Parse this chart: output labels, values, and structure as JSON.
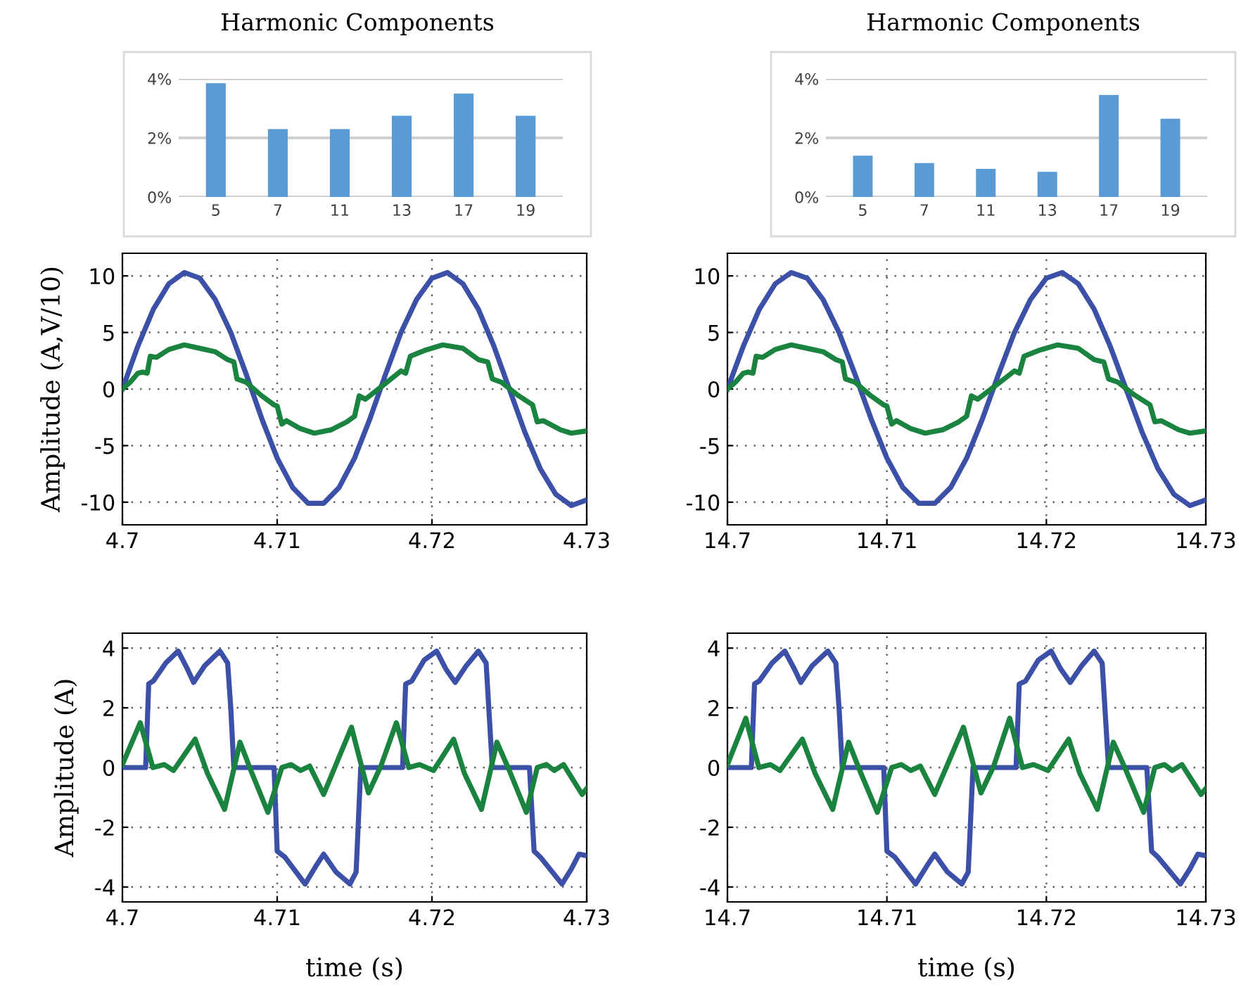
{
  "chart_data": [
    {
      "type": "bar",
      "title": "Harmonic Components",
      "categories": [
        "5",
        "7",
        "11",
        "13",
        "17",
        "19"
      ],
      "values": [
        3.85,
        2.3,
        2.3,
        2.75,
        3.5,
        2.75
      ],
      "color": "#5b9bd5",
      "ylim": [
        0,
        4
      ],
      "yticks": [
        {
          "value": 0,
          "label": "0%"
        },
        {
          "value": 2,
          "label": "2%"
        },
        {
          "value": 4,
          "label": "4%"
        }
      ],
      "grid": "y"
    },
    {
      "type": "bar",
      "title": "Harmonic Components",
      "categories": [
        "5",
        "7",
        "11",
        "13",
        "17",
        "19"
      ],
      "values": [
        1.4,
        1.15,
        0.95,
        0.85,
        3.45,
        2.65
      ],
      "color": "#5b9bd5",
      "ylim": [
        0,
        4
      ],
      "yticks": [
        {
          "value": 0,
          "label": "0%"
        },
        {
          "value": 2,
          "label": "2%"
        },
        {
          "value": 4,
          "label": "4%"
        }
      ],
      "grid": "y"
    },
    {
      "type": "line",
      "ylabel": "Amplitude (A,V/10)",
      "xlim": [
        4.7,
        4.73
      ],
      "xticks": [
        4.7,
        4.71,
        4.72,
        4.73
      ],
      "ylim": [
        -12,
        12
      ],
      "yticks": [
        {
          "value": -10,
          "label": "-10"
        },
        {
          "value": -5,
          "label": "-5"
        },
        0,
        5,
        10
      ],
      "grid": true,
      "line_style": "solid",
      "series": [
        {
          "color": "#3b50a6",
          "x": [
            4.7,
            4.701,
            4.702,
            4.703,
            4.704,
            4.705,
            4.706,
            4.707,
            4.708,
            4.709,
            4.71,
            4.711,
            4.712,
            4.713,
            4.714,
            4.715,
            4.716,
            4.717,
            4.718,
            4.719,
            4.72,
            4.721,
            4.722,
            4.723,
            4.724,
            4.725,
            4.726,
            4.727,
            4.728,
            4.729,
            4.73
          ],
          "values": [
            0,
            3.8,
            7.05,
            9.3,
            10.3,
            9.8,
            7.9,
            5.0,
            1.3,
            -2.6,
            -6.1,
            -8.7,
            -10.1,
            -10.1,
            -8.7,
            -6.1,
            -2.6,
            1.3,
            5.0,
            7.9,
            9.8,
            10.3,
            9.3,
            7.05,
            3.8,
            0,
            -3.8,
            -7.05,
            -9.3,
            -10.3,
            -9.8
          ]
        },
        {
          "color": "#1b8340",
          "x": [
            4.7,
            4.7005,
            4.701,
            4.7013,
            4.7016,
            4.7018,
            4.7022,
            4.703,
            4.704,
            4.705,
            4.706,
            4.7068,
            4.7072,
            4.7074,
            4.708,
            4.709,
            4.7098,
            4.71,
            4.7103,
            4.7106,
            4.7115,
            4.7124,
            4.7135,
            4.7145,
            4.715,
            4.7153,
            4.7157,
            4.717,
            4.718,
            4.7183,
            4.7186,
            4.7195,
            4.7207,
            4.722,
            4.723,
            4.7236,
            4.7239,
            4.7245,
            4.7255,
            4.7265,
            4.7268,
            4.7272,
            4.7283,
            4.729,
            4.73
          ],
          "values": [
            0,
            0.6,
            1.4,
            1.5,
            1.4,
            2.9,
            2.8,
            3.5,
            3.9,
            3.6,
            3.3,
            2.6,
            2.4,
            0.9,
            0.6,
            -0.6,
            -1.4,
            -1.5,
            -3.1,
            -2.8,
            -3.5,
            -3.9,
            -3.6,
            -2.9,
            -2.4,
            -0.6,
            -0.9,
            0.5,
            1.6,
            1.4,
            2.9,
            3.4,
            3.9,
            3.6,
            2.6,
            2.4,
            0.9,
            0.6,
            -0.5,
            -1.4,
            -2.9,
            -2.8,
            -3.6,
            -3.9,
            -3.7
          ]
        }
      ]
    },
    {
      "type": "line",
      "xlim": [
        14.7,
        14.73
      ],
      "xticks": [
        14.7,
        14.71,
        14.72,
        14.73
      ],
      "ylim": [
        -12,
        12
      ],
      "yticks": [
        {
          "value": -10,
          "label": "-10"
        },
        {
          "value": -5,
          "label": "-5"
        },
        0,
        5,
        10
      ],
      "grid": true,
      "line_style": "solid",
      "series": [
        {
          "color": "#3b50a6",
          "x": [
            14.7,
            14.701,
            14.702,
            14.703,
            14.704,
            14.705,
            14.706,
            14.707,
            14.708,
            14.709,
            14.71,
            14.711,
            14.712,
            14.713,
            14.714,
            14.715,
            14.716,
            14.717,
            14.718,
            14.719,
            14.72,
            14.721,
            14.722,
            14.723,
            14.724,
            14.725,
            14.726,
            14.727,
            14.728,
            14.729,
            14.73
          ],
          "values": [
            0,
            3.8,
            7.05,
            9.3,
            10.3,
            9.8,
            7.9,
            5.0,
            1.3,
            -2.6,
            -6.1,
            -8.7,
            -10.1,
            -10.1,
            -8.7,
            -6.1,
            -2.6,
            1.3,
            5.0,
            7.9,
            9.8,
            10.3,
            9.3,
            7.05,
            3.8,
            0,
            -3.8,
            -7.05,
            -9.3,
            -10.3,
            -9.8
          ]
        },
        {
          "color": "#1b8340",
          "x": [
            14.7,
            14.7005,
            14.701,
            14.7013,
            14.7016,
            14.7018,
            14.7022,
            14.703,
            14.704,
            14.705,
            14.706,
            14.7068,
            14.7072,
            14.7074,
            14.708,
            14.709,
            14.7098,
            14.71,
            14.7103,
            14.7106,
            14.7115,
            14.7124,
            14.7135,
            14.7145,
            14.715,
            14.7153,
            14.7157,
            14.717,
            14.718,
            14.7183,
            14.7186,
            14.7195,
            14.7207,
            14.722,
            14.723,
            14.7236,
            14.7239,
            14.7245,
            14.7255,
            14.7265,
            14.7268,
            14.7272,
            14.7283,
            14.729,
            14.73
          ],
          "values": [
            0,
            0.6,
            1.4,
            1.5,
            1.4,
            2.9,
            2.8,
            3.5,
            3.9,
            3.6,
            3.3,
            2.6,
            2.4,
            0.9,
            0.6,
            -0.6,
            -1.4,
            -1.5,
            -3.1,
            -2.8,
            -3.5,
            -3.9,
            -3.6,
            -2.9,
            -2.4,
            -0.6,
            -0.9,
            0.5,
            1.6,
            1.4,
            2.9,
            3.4,
            3.9,
            3.6,
            2.6,
            2.4,
            0.9,
            0.6,
            -0.5,
            -1.4,
            -2.9,
            -2.8,
            -3.6,
            -3.9,
            -3.7
          ]
        }
      ]
    },
    {
      "type": "line",
      "ylabel": "Amplitude (A)",
      "xlabel": "time (s)",
      "xlim": [
        4.7,
        4.73
      ],
      "xticks": [
        4.7,
        4.71,
        4.72,
        4.73
      ],
      "ylim": [
        -4.5,
        4.5
      ],
      "yticks": [
        {
          "value": -4,
          "label": "-4"
        },
        {
          "value": -2,
          "label": "-2"
        },
        0,
        2,
        4
      ],
      "grid": true,
      "line_style": "solid",
      "series": [
        {
          "color": "#3b50a6",
          "x": [
            4.7,
            4.7015,
            4.7017,
            4.702,
            4.7028,
            4.7036,
            4.7042,
            4.7046,
            4.7053,
            4.7063,
            4.7068,
            4.707,
            4.7072,
            4.7098,
            4.71,
            4.7105,
            4.7118,
            4.7125,
            4.713,
            4.7138,
            4.7147,
            4.7151,
            4.7154,
            4.7181,
            4.7183,
            4.7187,
            4.7195,
            4.7203,
            4.7209,
            4.7215,
            4.7222,
            4.723,
            4.7235,
            4.7239,
            4.7263,
            4.7266,
            4.727,
            4.7284,
            4.729,
            4.7295,
            4.73
          ],
          "values": [
            0,
            0,
            2.8,
            2.9,
            3.5,
            3.9,
            3.3,
            2.85,
            3.4,
            3.9,
            3.5,
            2.0,
            0,
            0,
            -2.8,
            -3.0,
            -3.9,
            -3.3,
            -2.9,
            -3.5,
            -3.9,
            -3.5,
            0,
            0,
            2.8,
            2.9,
            3.6,
            3.9,
            3.3,
            2.85,
            3.4,
            3.9,
            3.5,
            0,
            0,
            -2.8,
            -3.0,
            -3.9,
            -3.4,
            -2.9,
            -2.95
          ]
        },
        {
          "color": "#1b8340",
          "x": [
            4.7,
            4.70115,
            4.70197,
            4.7027,
            4.7033,
            4.7047,
            4.7055,
            4.7066,
            4.7076,
            4.7083,
            4.7094,
            4.7103,
            4.7109,
            4.7115,
            4.7121,
            4.713,
            4.7148,
            4.7159,
            4.7167,
            4.7177,
            4.7185,
            4.7192,
            4.7201,
            4.7214,
            4.7221,
            4.7232,
            4.7242,
            4.725,
            4.7261,
            4.7268,
            4.7274,
            4.7279,
            4.7285,
            4.7297,
            4.73
          ],
          "values": [
            0.1,
            1.5,
            0,
            0.1,
            -0.1,
            0.95,
            -0.2,
            -1.4,
            0.85,
            -0.1,
            -1.5,
            0,
            0.1,
            -0.1,
            0.05,
            -0.9,
            1.35,
            -0.85,
            0.05,
            1.5,
            0,
            0.1,
            -0.1,
            0.95,
            -0.2,
            -1.4,
            0.85,
            -0.1,
            -1.5,
            0,
            0.1,
            -0.1,
            0.1,
            -0.9,
            -0.7
          ]
        }
      ]
    },
    {
      "type": "line",
      "xlabel": "time (s)",
      "xlim": [
        14.7,
        14.73
      ],
      "xticks": [
        14.7,
        14.71,
        14.72,
        14.73
      ],
      "ylim": [
        -4.5,
        4.5
      ],
      "yticks": [
        {
          "value": -4,
          "label": "-4"
        },
        {
          "value": -2,
          "label": "-2"
        },
        0,
        2,
        4
      ],
      "grid": true,
      "line_style": "solid",
      "series": [
        {
          "color": "#3b50a6",
          "x": [
            14.7,
            14.7015,
            14.7017,
            14.702,
            14.7028,
            14.7036,
            14.7042,
            14.7046,
            14.7053,
            14.7063,
            14.7068,
            14.707,
            14.7072,
            14.7098,
            14.71,
            14.7105,
            14.7118,
            14.7125,
            14.713,
            14.7138,
            14.7147,
            14.7151,
            14.7154,
            14.7181,
            14.7183,
            14.7187,
            14.7195,
            14.7203,
            14.7209,
            14.7215,
            14.7222,
            14.723,
            14.7235,
            14.7239,
            14.7263,
            14.7266,
            14.727,
            14.7284,
            14.729,
            14.7295,
            14.73
          ],
          "values": [
            0,
            0,
            2.8,
            2.9,
            3.5,
            3.9,
            3.3,
            2.85,
            3.4,
            3.9,
            3.5,
            2.0,
            0,
            0,
            -2.8,
            -3.0,
            -3.9,
            -3.3,
            -2.9,
            -3.5,
            -3.9,
            -3.5,
            0,
            0,
            2.8,
            2.9,
            3.6,
            3.9,
            3.3,
            2.85,
            3.4,
            3.9,
            3.5,
            0,
            0,
            -2.8,
            -3.0,
            -3.9,
            -3.4,
            -2.9,
            -2.95
          ]
        },
        {
          "color": "#1b8340",
          "x": [
            14.7,
            14.70115,
            14.70197,
            14.7027,
            14.7033,
            14.7047,
            14.7055,
            14.7066,
            14.7076,
            14.7083,
            14.7094,
            14.7103,
            14.7109,
            14.7115,
            14.7121,
            14.713,
            14.7148,
            14.7159,
            14.7167,
            14.7177,
            14.7185,
            14.7192,
            14.7201,
            14.7214,
            14.7221,
            14.7232,
            14.7242,
            14.725,
            14.7261,
            14.7268,
            14.7274,
            14.7279,
            14.7285,
            14.7297,
            14.73
          ],
          "values": [
            0.1,
            1.65,
            0,
            0.1,
            -0.1,
            0.95,
            -0.2,
            -1.4,
            0.85,
            -0.1,
            -1.5,
            0,
            0.1,
            -0.1,
            0.05,
            -0.9,
            1.35,
            -0.85,
            0.05,
            1.65,
            0,
            0.1,
            -0.1,
            0.95,
            -0.2,
            -1.4,
            0.85,
            -0.1,
            -1.5,
            0,
            0.1,
            -0.1,
            0.1,
            -0.9,
            -0.7
          ]
        }
      ]
    }
  ]
}
